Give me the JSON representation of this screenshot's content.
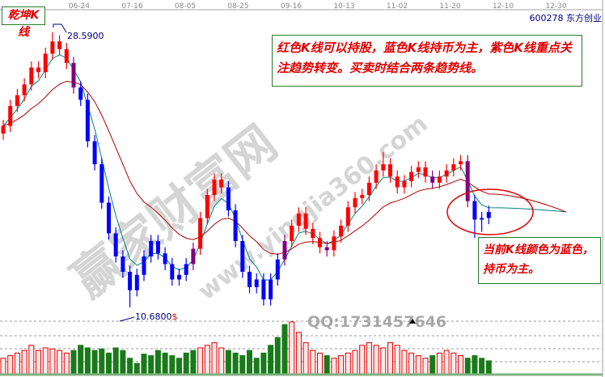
{
  "stock": {
    "code": "600278",
    "name": "东方创业"
  },
  "indicator_label": "乾坤K线",
  "annotations": {
    "main_note": "红色K线可以持股，蓝色K线持币为主，紫色K线重点关注趋势转变。买卖时结合两条趋势线。",
    "current_note": "当前K线颜色为蓝色，持币为主。"
  },
  "watermarks": {
    "site_name": "赢家财富网",
    "site_url": "www.yingjia360.com",
    "qq": "QQ:1731457646"
  },
  "colors": {
    "up": "#ff0000",
    "down": "#0000ff",
    "turn": "#800080",
    "short_ma": "#008080",
    "long_ma": "#b00000",
    "vol_up": "#e00000",
    "vol_down": "#1a7a1a",
    "note_border": "#2a7a2a"
  },
  "chart_data": {
    "type": "candlestick",
    "x_tick_labels": [
      "06-24",
      "07-16",
      "08-05",
      "08-25",
      "09-16",
      "10-13",
      "11-02",
      "11-20",
      "12-10",
      "12-30"
    ],
    "max_label": "28.5900",
    "min_label": "10.6800",
    "min_marker": "$",
    "ylim": [
      10.68,
      28.59
    ],
    "candle_format": [
      "open",
      "high",
      "low",
      "close",
      "color"
    ],
    "candles": [
      [
        22.0,
        22.9,
        21.6,
        22.5,
        "r"
      ],
      [
        22.5,
        24.2,
        22.1,
        23.8,
        "r"
      ],
      [
        23.8,
        24.9,
        23.4,
        24.5,
        "r"
      ],
      [
        24.5,
        25.6,
        24.1,
        25.2,
        "r"
      ],
      [
        25.2,
        26.7,
        24.8,
        26.3,
        "r"
      ],
      [
        26.3,
        26.7,
        25.6,
        26.0,
        "r"
      ],
      [
        26.0,
        27.6,
        25.6,
        27.2,
        "r"
      ],
      [
        27.2,
        28.59,
        26.8,
        28.0,
        "r"
      ],
      [
        28.0,
        28.4,
        27.1,
        27.5,
        "r"
      ],
      [
        27.5,
        27.9,
        26.2,
        26.6,
        "r"
      ],
      [
        26.6,
        27.0,
        24.6,
        25.0,
        "p"
      ],
      [
        25.0,
        25.4,
        23.8,
        24.2,
        "b"
      ],
      [
        24.2,
        24.6,
        21.1,
        21.5,
        "b"
      ],
      [
        21.5,
        21.9,
        19.6,
        20.0,
        "b"
      ],
      [
        20.0,
        20.4,
        17.1,
        17.5,
        "b"
      ],
      [
        17.5,
        17.9,
        15.1,
        15.5,
        "b"
      ],
      [
        15.5,
        15.9,
        13.6,
        14.0,
        "b"
      ],
      [
        14.0,
        14.4,
        12.6,
        13.0,
        "b"
      ],
      [
        13.0,
        13.4,
        10.68,
        11.8,
        "b"
      ],
      [
        11.8,
        13.2,
        11.4,
        12.8,
        "b"
      ],
      [
        12.8,
        14.4,
        12.4,
        14.0,
        "b"
      ],
      [
        14.0,
        15.4,
        13.6,
        15.0,
        "b"
      ],
      [
        15.0,
        15.4,
        13.8,
        14.2,
        "b"
      ],
      [
        14.2,
        14.6,
        13.1,
        13.5,
        "b"
      ],
      [
        13.5,
        13.9,
        12.1,
        12.5,
        "b"
      ],
      [
        12.5,
        13.2,
        12.1,
        12.8,
        "b"
      ],
      [
        12.8,
        13.9,
        12.4,
        13.5,
        "b"
      ],
      [
        13.5,
        14.9,
        13.1,
        14.5,
        "p"
      ],
      [
        14.5,
        16.9,
        14.1,
        16.5,
        "r"
      ],
      [
        16.5,
        18.4,
        16.1,
        18.0,
        "r"
      ],
      [
        18.0,
        19.4,
        17.6,
        19.0,
        "r"
      ],
      [
        19.0,
        19.4,
        18.1,
        18.5,
        "r"
      ],
      [
        18.5,
        18.9,
        16.6,
        17.0,
        "b"
      ],
      [
        17.0,
        17.4,
        14.6,
        15.0,
        "b"
      ],
      [
        15.0,
        15.4,
        12.6,
        13.0,
        "b"
      ],
      [
        13.0,
        13.4,
        11.6,
        12.0,
        "b"
      ],
      [
        12.0,
        12.9,
        11.6,
        12.5,
        "b"
      ],
      [
        12.5,
        12.9,
        10.8,
        11.2,
        "b"
      ],
      [
        11.2,
        12.9,
        10.8,
        12.5,
        "b"
      ],
      [
        12.5,
        14.2,
        12.1,
        13.8,
        "b"
      ],
      [
        13.8,
        15.4,
        13.4,
        15.0,
        "p"
      ],
      [
        15.0,
        16.4,
        14.6,
        16.0,
        "r"
      ],
      [
        16.0,
        17.2,
        15.6,
        16.8,
        "r"
      ],
      [
        16.8,
        17.2,
        15.4,
        15.8,
        "r"
      ],
      [
        15.8,
        16.2,
        14.8,
        15.2,
        "r"
      ],
      [
        15.2,
        15.6,
        14.2,
        14.6,
        "r"
      ],
      [
        14.6,
        15.0,
        14.0,
        14.4,
        "p"
      ],
      [
        14.4,
        15.7,
        14.0,
        15.3,
        "r"
      ],
      [
        15.3,
        16.4,
        14.9,
        16.0,
        "r"
      ],
      [
        16.0,
        17.6,
        15.6,
        17.2,
        "r"
      ],
      [
        17.2,
        18.2,
        16.8,
        17.8,
        "r"
      ],
      [
        17.8,
        18.4,
        17.4,
        18.0,
        "r"
      ],
      [
        18.0,
        19.2,
        17.6,
        18.8,
        "r"
      ],
      [
        18.8,
        20.0,
        18.4,
        19.6,
        "r"
      ],
      [
        19.6,
        20.8,
        19.2,
        20.0,
        "r"
      ],
      [
        20.0,
        20.4,
        18.8,
        19.2,
        "r"
      ],
      [
        19.2,
        19.6,
        18.1,
        18.5,
        "r"
      ],
      [
        18.5,
        19.3,
        18.1,
        18.9,
        "r"
      ],
      [
        18.9,
        19.9,
        18.5,
        19.5,
        "r"
      ],
      [
        19.5,
        20.2,
        19.1,
        19.8,
        "r"
      ],
      [
        19.8,
        20.2,
        18.8,
        19.2,
        "r"
      ],
      [
        19.2,
        19.6,
        18.4,
        18.8,
        "p"
      ],
      [
        18.8,
        19.6,
        18.4,
        19.2,
        "r"
      ],
      [
        19.2,
        20.0,
        18.8,
        19.6,
        "r"
      ],
      [
        19.6,
        20.4,
        19.2,
        20.0,
        "r"
      ],
      [
        20.0,
        20.6,
        19.6,
        20.2,
        "r"
      ],
      [
        20.2,
        20.6,
        17.2,
        17.6,
        "p"
      ],
      [
        17.6,
        18.0,
        15.2,
        16.4,
        "b"
      ],
      [
        16.4,
        16.9,
        15.6,
        16.5,
        "b"
      ],
      [
        16.5,
        17.3,
        16.1,
        16.9,
        "b"
      ]
    ],
    "volume": [
      30,
      35,
      40,
      45,
      55,
      45,
      50,
      48,
      45,
      40,
      45,
      55,
      50,
      45,
      48,
      40,
      50,
      45,
      30,
      20,
      38,
      35,
      45,
      40,
      35,
      30,
      40,
      45,
      50,
      55,
      60,
      50,
      45,
      40,
      35,
      45,
      30,
      40,
      55,
      70,
      95,
      100,
      80,
      60,
      45,
      40,
      35,
      30,
      35,
      40,
      45,
      55,
      60,
      55,
      50,
      60,
      55,
      45,
      40,
      35,
      30,
      35,
      40,
      45,
      40,
      35,
      30,
      35,
      30,
      25
    ]
  }
}
